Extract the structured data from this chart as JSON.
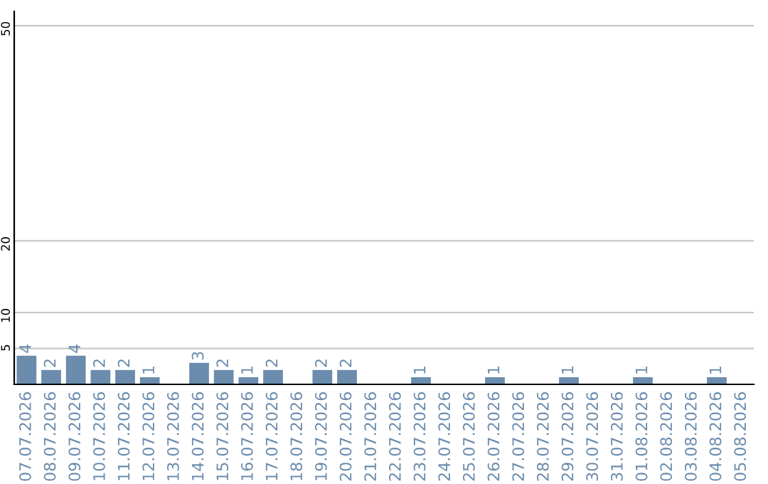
{
  "chart_data": {
    "type": "bar",
    "categories": [
      "07.07.2026",
      "08.07.2026",
      "09.07.2026",
      "10.07.2026",
      "11.07.2026",
      "12.07.2026",
      "13.07.2026",
      "14.07.2026",
      "15.07.2026",
      "16.07.2026",
      "17.07.2026",
      "18.07.2026",
      "19.07.2026",
      "20.07.2026",
      "21.07.2026",
      "22.07.2026",
      "23.07.2026",
      "24.07.2026",
      "25.07.2026",
      "26.07.2026",
      "27.07.2026",
      "28.07.2026",
      "29.07.2026",
      "30.07.2026",
      "31.07.2026",
      "01.08.2026",
      "02.08.2026",
      "03.08.2026",
      "04.08.2026",
      "05.08.2026"
    ],
    "values": [
      4,
      2,
      4,
      2,
      2,
      1,
      0,
      3,
      2,
      1,
      2,
      0,
      2,
      2,
      0,
      0,
      1,
      0,
      0,
      1,
      0,
      0,
      1,
      0,
      0,
      1,
      0,
      0,
      1,
      0
    ],
    "value_labels": [
      "4",
      "2",
      "4",
      "2",
      "2",
      "1",
      null,
      "3",
      "2",
      "1",
      "2",
      null,
      "2",
      "2",
      null,
      null,
      "1",
      null,
      null,
      "1",
      null,
      null,
      "1",
      null,
      null,
      "1",
      null,
      null,
      "1",
      null
    ],
    "color": "#6b8cad",
    "ylim": [
      0,
      52
    ],
    "yticks": [
      5,
      10,
      20,
      50
    ],
    "grid": "y",
    "legend": false
  }
}
